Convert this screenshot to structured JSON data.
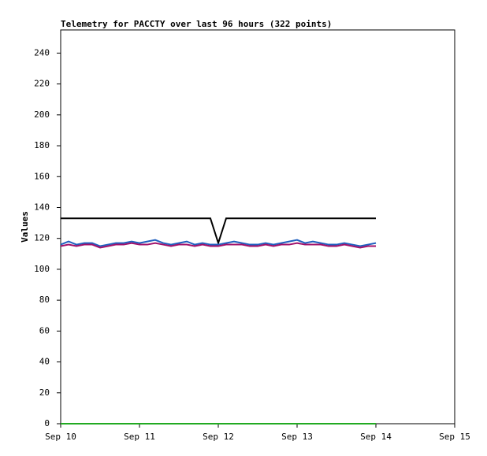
{
  "chart_data": {
    "type": "line",
    "title": "Telemetry for PACCTY over last 96 hours (322 points)",
    "y_label": "Values",
    "x": [
      10.0,
      10.1,
      10.2,
      10.3,
      10.4,
      10.5,
      10.6,
      10.7,
      10.8,
      10.9,
      11.0,
      11.1,
      11.2,
      11.3,
      11.4,
      11.5,
      11.6,
      11.7,
      11.8,
      11.9,
      12.0,
      12.1,
      12.2,
      12.3,
      12.4,
      12.5,
      12.6,
      12.7,
      12.8,
      12.9,
      13.0,
      13.1,
      13.2,
      13.3,
      13.4,
      13.5,
      13.6,
      13.7,
      13.8,
      13.9,
      14.0
    ],
    "xlim": [
      10,
      15
    ],
    "xticks": [
      {
        "value": 10,
        "label": "Sep 10"
      },
      {
        "value": 11,
        "label": "Sep 11"
      },
      {
        "value": 12,
        "label": "Sep 12"
      },
      {
        "value": 13,
        "label": "Sep 13"
      },
      {
        "value": 14,
        "label": "Sep 14"
      },
      {
        "value": 15,
        "label": "Sep 15"
      }
    ],
    "ylim": [
      0,
      255
    ],
    "yticks": [
      0,
      20,
      40,
      60,
      80,
      100,
      120,
      140,
      160,
      180,
      200,
      220,
      240
    ],
    "series": [
      {
        "color": "#000000",
        "values": [
          133,
          133,
          133,
          133,
          133,
          133,
          133,
          133,
          133,
          133,
          133,
          133,
          133,
          133,
          133,
          133,
          133,
          133,
          133,
          133,
          117,
          133,
          133,
          133,
          133,
          133,
          133,
          133,
          133,
          133,
          133,
          133,
          133,
          133,
          133,
          133,
          133,
          133,
          133,
          133,
          133
        ]
      },
      {
        "color": "#1f5fbf",
        "values": [
          116,
          118,
          116,
          117,
          117,
          115,
          116,
          117,
          117,
          118,
          117,
          118,
          119,
          117,
          116,
          117,
          118,
          116,
          117,
          116,
          116,
          117,
          118,
          117,
          116,
          116,
          117,
          116,
          117,
          118,
          119,
          117,
          118,
          117,
          116,
          116,
          117,
          116,
          115,
          116,
          117
        ]
      },
      {
        "color": "#a0106a",
        "values": [
          115,
          116,
          115,
          116,
          116,
          114,
          115,
          116,
          116,
          117,
          116,
          116,
          117,
          116,
          115,
          116,
          116,
          115,
          116,
          115,
          115,
          116,
          116,
          116,
          115,
          115,
          116,
          115,
          116,
          116,
          117,
          116,
          116,
          116,
          115,
          115,
          116,
          115,
          114,
          115,
          115
        ]
      },
      {
        "color": "#22aa22",
        "values": [
          0,
          0,
          0,
          0,
          0,
          0,
          0,
          0,
          0,
          0,
          0,
          0,
          0,
          0,
          0,
          0,
          0,
          0,
          0,
          0,
          0,
          0,
          0,
          0,
          0,
          0,
          0,
          0,
          0,
          0,
          0,
          0,
          0,
          0,
          0,
          0,
          0,
          0,
          0,
          0,
          0
        ]
      }
    ]
  }
}
